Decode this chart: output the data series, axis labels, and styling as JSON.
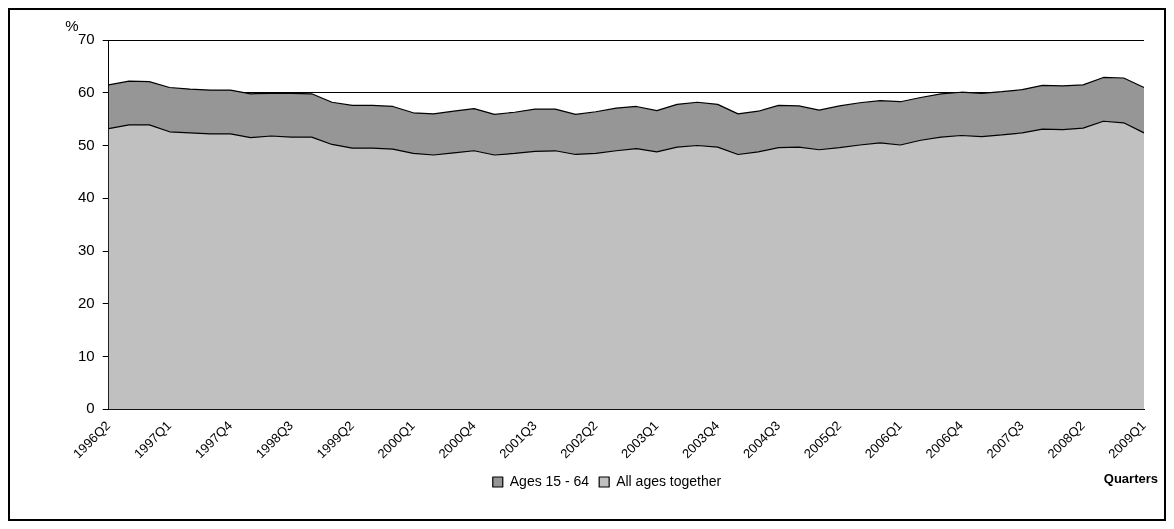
{
  "chart_data": {
    "type": "area",
    "ylabel": "%",
    "xlabel": "Quarters",
    "categories": [
      "1996Q2",
      null,
      null,
      "1997Q1",
      null,
      null,
      "1997Q4",
      null,
      null,
      "1998Q3",
      null,
      null,
      "1999Q2",
      null,
      null,
      "2000Q1",
      null,
      null,
      "2000Q4",
      null,
      null,
      "2001Q3",
      null,
      null,
      "2002Q2",
      null,
      null,
      "2003Q1",
      null,
      null,
      "2003Q4",
      null,
      null,
      "2004Q3",
      null,
      null,
      "2005Q2",
      null,
      null,
      "2006Q1",
      null,
      null,
      "2006Q4",
      null,
      null,
      "2007Q3",
      null,
      null,
      "2008Q2",
      null,
      null,
      "2009Q1"
    ],
    "series": [
      {
        "name": "Ages 15 - 64",
        "color": "#969696",
        "values": [
          61.5,
          62.2,
          62.1,
          61,
          60.7,
          60.5,
          60.5,
          59.8,
          59.9,
          59.9,
          59.8,
          58.2,
          57.6,
          57.6,
          57.4,
          56.2,
          56.0,
          56.5,
          57.0,
          55.9,
          56.3,
          56.9,
          56.9,
          55.9,
          56.4,
          57.1,
          57.4,
          56.6,
          57.8,
          58.2,
          57.8,
          56.0,
          56.5,
          57.6,
          57.5,
          56.7,
          57.5,
          58.1,
          58.5,
          58.3,
          59.1,
          59.8,
          60.1,
          59.9,
          60.2,
          60.6,
          61.4,
          61.3,
          61.5,
          62.9,
          62.8,
          61.0
        ]
      },
      {
        "name": "All ages together",
        "color": "#c0c0c0",
        "values": [
          53.2,
          53.9,
          53.9,
          52.6,
          52.4,
          52.2,
          52.2,
          51.5,
          51.8,
          51.6,
          51.6,
          50.2,
          49.5,
          49.5,
          49.3,
          48.5,
          48.2,
          48.6,
          49.0,
          48.2,
          48.5,
          48.9,
          49.0,
          48.3,
          48.5,
          49.0,
          49.4,
          48.8,
          49.7,
          50.0,
          49.7,
          48.3,
          48.8,
          49.6,
          49.7,
          49.2,
          49.6,
          50.1,
          50.5,
          50.1,
          51.0,
          51.6,
          51.9,
          51.7,
          52.0,
          52.4,
          53.1,
          53.0,
          53.3,
          54.6,
          54.3,
          52.4
        ]
      }
    ],
    "ylim": [
      0,
      70
    ],
    "yticks": [
      0,
      10,
      20,
      30,
      40,
      50,
      60,
      70
    ],
    "grid": "y",
    "legend": "bottom"
  }
}
